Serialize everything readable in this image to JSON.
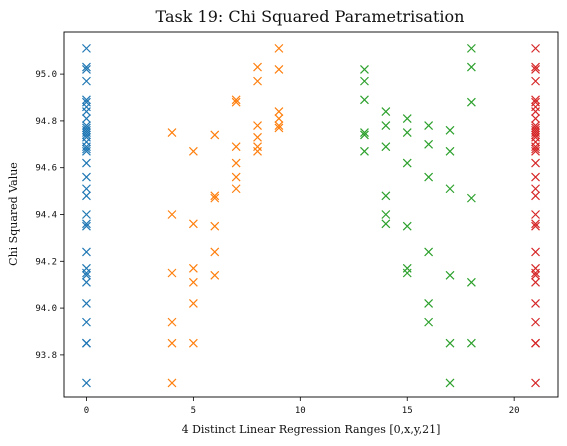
{
  "chart_data": {
    "type": "scatter",
    "title": "Task 19: Chi Squared Parametrisation",
    "xlabel": "4 Distinct Linear Regression Ranges [0,x,y,21]",
    "ylabel": "Chi Squared Value",
    "xlim": [
      -1.05,
      22.05
    ],
    "ylim": [
      93.62,
      95.18
    ],
    "xticks": [
      0,
      5,
      10,
      15,
      20
    ],
    "xtick_labels": [
      "0",
      "5",
      "10",
      "15",
      "20"
    ],
    "yticks": [
      93.8,
      94.0,
      94.2,
      94.4,
      94.6,
      94.8,
      95.0
    ],
    "ytick_labels": [
      "93.8",
      "94.0",
      "94.2",
      "94.4",
      "94.6",
      "94.8",
      "95.0"
    ],
    "grid": false,
    "marker": "x",
    "series": [
      {
        "color": "#1f77b4",
        "points": [
          [
            0,
            95.11
          ],
          [
            0,
            95.03
          ],
          [
            0,
            95.02
          ],
          [
            0,
            94.97
          ],
          [
            0,
            94.89
          ],
          [
            0,
            94.88
          ],
          [
            0,
            94.86
          ],
          [
            0,
            94.84
          ],
          [
            0,
            94.81
          ],
          [
            0,
            94.78
          ],
          [
            0,
            94.77
          ],
          [
            0,
            94.76
          ],
          [
            0,
            94.75
          ],
          [
            0,
            94.74
          ],
          [
            0,
            94.73
          ],
          [
            0,
            94.71
          ],
          [
            0,
            94.69
          ],
          [
            0,
            94.68
          ],
          [
            0,
            94.67
          ],
          [
            0,
            94.62
          ],
          [
            0,
            94.56
          ],
          [
            0,
            94.51
          ],
          [
            0,
            94.48
          ],
          [
            0,
            94.4
          ],
          [
            0,
            94.36
          ],
          [
            0,
            94.35
          ],
          [
            0,
            94.24
          ],
          [
            0,
            94.17
          ],
          [
            0,
            94.15
          ],
          [
            0,
            94.14
          ],
          [
            0,
            94.11
          ],
          [
            0,
            94.02
          ],
          [
            0,
            93.94
          ],
          [
            0,
            93.85
          ],
          [
            0,
            93.85
          ],
          [
            0,
            93.68
          ]
        ]
      },
      {
        "color": "#ff7f0e",
        "points": [
          [
            4,
            94.75
          ],
          [
            4,
            94.4
          ],
          [
            4,
            94.15
          ],
          [
            4,
            93.94
          ],
          [
            4,
            93.85
          ],
          [
            4,
            93.68
          ],
          [
            5,
            94.67
          ],
          [
            5,
            94.36
          ],
          [
            5,
            94.17
          ],
          [
            5,
            94.11
          ],
          [
            5,
            94.02
          ],
          [
            5,
            93.85
          ],
          [
            6,
            94.74
          ],
          [
            6,
            94.48
          ],
          [
            6,
            94.47
          ],
          [
            6,
            94.35
          ],
          [
            6,
            94.24
          ],
          [
            6,
            94.14
          ],
          [
            7,
            94.89
          ],
          [
            7,
            94.88
          ],
          [
            7,
            94.69
          ],
          [
            7,
            94.62
          ],
          [
            7,
            94.56
          ],
          [
            7,
            94.51
          ],
          [
            8,
            95.03
          ],
          [
            8,
            94.97
          ],
          [
            8,
            94.78
          ],
          [
            8,
            94.73
          ],
          [
            8,
            94.69
          ],
          [
            8,
            94.67
          ],
          [
            9,
            95.11
          ],
          [
            9,
            95.02
          ],
          [
            9,
            94.84
          ],
          [
            9,
            94.81
          ],
          [
            9,
            94.77
          ],
          [
            9,
            94.78
          ]
        ]
      },
      {
        "color": "#2ca02c",
        "points": [
          [
            13,
            95.02
          ],
          [
            13,
            94.97
          ],
          [
            13,
            94.89
          ],
          [
            13,
            94.75
          ],
          [
            13,
            94.74
          ],
          [
            13,
            94.67
          ],
          [
            14,
            94.84
          ],
          [
            14,
            94.78
          ],
          [
            14,
            94.69
          ],
          [
            14,
            94.48
          ],
          [
            14,
            94.4
          ],
          [
            14,
            94.36
          ],
          [
            15,
            94.81
          ],
          [
            15,
            94.75
          ],
          [
            15,
            94.62
          ],
          [
            15,
            94.35
          ],
          [
            15,
            94.17
          ],
          [
            15,
            94.15
          ],
          [
            16,
            94.78
          ],
          [
            16,
            94.7
          ],
          [
            16,
            94.56
          ],
          [
            16,
            94.24
          ],
          [
            16,
            94.02
          ],
          [
            16,
            93.94
          ],
          [
            17,
            94.76
          ],
          [
            17,
            94.67
          ],
          [
            17,
            94.51
          ],
          [
            17,
            94.14
          ],
          [
            17,
            93.85
          ],
          [
            17,
            93.68
          ],
          [
            18,
            95.11
          ],
          [
            18,
            95.03
          ],
          [
            18,
            94.88
          ],
          [
            18,
            94.47
          ],
          [
            18,
            94.11
          ],
          [
            18,
            93.85
          ]
        ]
      },
      {
        "color": "#d62728",
        "points": [
          [
            21,
            95.11
          ],
          [
            21,
            95.03
          ],
          [
            21,
            95.02
          ],
          [
            21,
            94.97
          ],
          [
            21,
            94.89
          ],
          [
            21,
            94.88
          ],
          [
            21,
            94.86
          ],
          [
            21,
            94.84
          ],
          [
            21,
            94.81
          ],
          [
            21,
            94.78
          ],
          [
            21,
            94.77
          ],
          [
            21,
            94.76
          ],
          [
            21,
            94.75
          ],
          [
            21,
            94.74
          ],
          [
            21,
            94.73
          ],
          [
            21,
            94.71
          ],
          [
            21,
            94.69
          ],
          [
            21,
            94.68
          ],
          [
            21,
            94.67
          ],
          [
            21,
            94.62
          ],
          [
            21,
            94.56
          ],
          [
            21,
            94.51
          ],
          [
            21,
            94.48
          ],
          [
            21,
            94.4
          ],
          [
            21,
            94.36
          ],
          [
            21,
            94.35
          ],
          [
            21,
            94.24
          ],
          [
            21,
            94.17
          ],
          [
            21,
            94.15
          ],
          [
            21,
            94.14
          ],
          [
            21,
            94.11
          ],
          [
            21,
            94.02
          ],
          [
            21,
            93.94
          ],
          [
            21,
            93.85
          ],
          [
            21,
            93.85
          ],
          [
            21,
            93.68
          ]
        ]
      }
    ]
  }
}
